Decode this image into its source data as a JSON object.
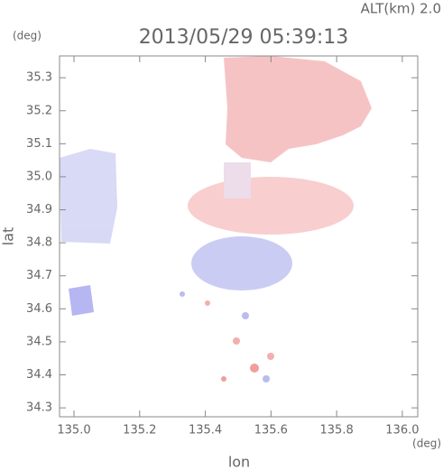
{
  "chart_data": {
    "type": "image",
    "title": "2013/05/29 05:39:13",
    "annotation": "ALT(km) 2.0",
    "x_label": "lon",
    "y_label": "lat",
    "x_unit": "(deg)",
    "y_unit": "(deg)",
    "xlim": [
      134.956,
      136.047
    ],
    "xticks": [
      {
        "value": 135,
        "label": "135.0"
      },
      135.2,
      135.4,
      135.6,
      135.8,
      {
        "value": 136,
        "label": "136.0"
      }
    ],
    "ylim": [
      34.273,
      35.366
    ],
    "yticks": [
      34.3,
      34.4,
      34.5,
      34.6,
      34.7,
      34.8,
      34.9,
      {
        "value": 35,
        "label": "35.0"
      },
      35.1,
      35.2,
      35.3
    ]
  }
}
